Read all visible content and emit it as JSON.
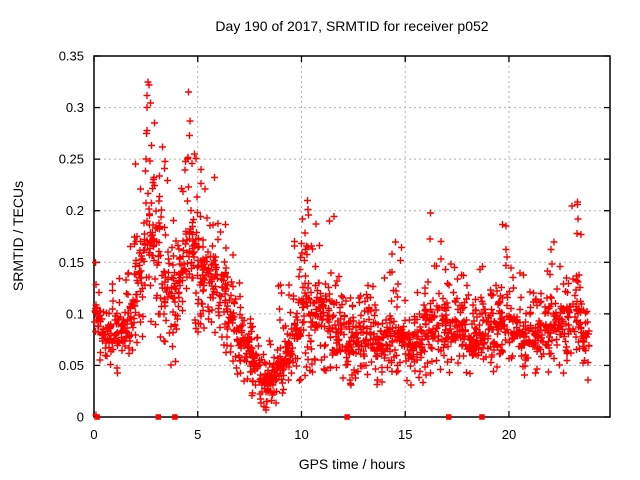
{
  "chart_data": {
    "type": "scatter",
    "title": "Day 190 of 2017, SRMTID for receiver p052",
    "xlabel": "GPS time / hours",
    "ylabel": "SRMTID / TECUs",
    "xlim": [
      0,
      24.87
    ],
    "ylim": [
      0,
      0.35
    ],
    "xticks": [
      0,
      5,
      10,
      15,
      20
    ],
    "xtick_labels": [
      "0",
      "5",
      "10",
      "15",
      "20"
    ],
    "yticks": [
      0,
      0.05,
      0.1,
      0.15,
      0.2,
      0.25,
      0.3,
      0.35
    ],
    "ytick_labels": [
      "0",
      "0.05",
      "0.1",
      "0.15",
      "0.2",
      "0.25",
      "0.3",
      "0.35"
    ],
    "grid": true,
    "legend": "none",
    "marker": "plus",
    "marker_color": "#ff0000",
    "grid_color": "#b0b0b0",
    "border_color": "#000000",
    "series_description": "Dense GPS ionospheric SRMTID scatter over 24 h: morning peak 2-6 h reaching 0.325, midday minimum near 8.3 h (~0.01), secondary spikes near 10.3, 11.3, 16.2, 19.8 and 23.3 h, baseline band 0.04-0.12",
    "density_bins": [
      [
        0.0,
        0.4,
        0.05,
        0.07,
        0.12,
        0.155,
        26
      ],
      [
        0.4,
        0.8,
        0.045,
        0.06,
        0.1,
        0.13,
        30
      ],
      [
        0.8,
        1.2,
        0.04,
        0.06,
        0.1,
        0.14,
        32
      ],
      [
        1.2,
        1.6,
        0.04,
        0.065,
        0.11,
        0.16,
        34
      ],
      [
        1.6,
        2.0,
        0.05,
        0.08,
        0.13,
        0.19,
        34
      ],
      [
        2.0,
        2.4,
        0.07,
        0.1,
        0.17,
        0.25,
        36
      ],
      [
        2.4,
        2.8,
        0.09,
        0.13,
        0.22,
        0.325,
        38
      ],
      [
        2.8,
        3.2,
        0.08,
        0.12,
        0.22,
        0.3,
        38
      ],
      [
        3.2,
        3.6,
        0.06,
        0.1,
        0.18,
        0.26,
        34
      ],
      [
        3.6,
        4.0,
        0.05,
        0.09,
        0.15,
        0.2,
        32
      ],
      [
        4.0,
        4.4,
        0.07,
        0.1,
        0.17,
        0.24,
        34
      ],
      [
        4.4,
        4.8,
        0.08,
        0.12,
        0.2,
        0.315,
        36
      ],
      [
        4.8,
        5.2,
        0.08,
        0.11,
        0.19,
        0.29,
        36
      ],
      [
        5.2,
        5.6,
        0.08,
        0.11,
        0.18,
        0.25,
        36
      ],
      [
        5.6,
        6.0,
        0.07,
        0.1,
        0.17,
        0.235,
        36
      ],
      [
        6.0,
        6.4,
        0.06,
        0.09,
        0.15,
        0.2,
        34
      ],
      [
        6.4,
        6.8,
        0.05,
        0.07,
        0.12,
        0.16,
        34
      ],
      [
        6.8,
        7.2,
        0.04,
        0.06,
        0.1,
        0.13,
        34
      ],
      [
        7.2,
        7.6,
        0.03,
        0.05,
        0.09,
        0.11,
        34
      ],
      [
        7.6,
        8.0,
        0.02,
        0.035,
        0.07,
        0.09,
        36
      ],
      [
        8.0,
        8.4,
        0.005,
        0.02,
        0.05,
        0.07,
        36
      ],
      [
        8.4,
        8.8,
        0.01,
        0.025,
        0.055,
        0.08,
        36
      ],
      [
        8.8,
        9.2,
        0.02,
        0.035,
        0.065,
        0.13,
        36
      ],
      [
        9.2,
        9.6,
        0.03,
        0.045,
        0.08,
        0.14,
        36
      ],
      [
        9.6,
        10.0,
        0.035,
        0.05,
        0.11,
        0.17,
        38
      ],
      [
        10.0,
        10.4,
        0.04,
        0.07,
        0.15,
        0.21,
        38
      ],
      [
        10.4,
        10.8,
        0.04,
        0.06,
        0.12,
        0.19,
        36
      ],
      [
        10.8,
        11.2,
        0.045,
        0.07,
        0.13,
        0.185,
        36
      ],
      [
        11.2,
        11.6,
        0.04,
        0.065,
        0.13,
        0.195,
        36
      ],
      [
        11.6,
        12.0,
        0.035,
        0.05,
        0.1,
        0.145,
        36
      ],
      [
        12.0,
        12.5,
        0.03,
        0.05,
        0.09,
        0.12,
        40
      ],
      [
        12.5,
        13.0,
        0.03,
        0.05,
        0.09,
        0.125,
        40
      ],
      [
        13.0,
        13.5,
        0.035,
        0.05,
        0.1,
        0.13,
        40
      ],
      [
        13.5,
        14.0,
        0.03,
        0.05,
        0.09,
        0.115,
        40
      ],
      [
        14.0,
        14.5,
        0.04,
        0.055,
        0.1,
        0.165,
        40
      ],
      [
        14.5,
        15.0,
        0.04,
        0.06,
        0.105,
        0.17,
        40
      ],
      [
        15.0,
        15.5,
        0.03,
        0.05,
        0.09,
        0.12,
        40
      ],
      [
        15.5,
        16.0,
        0.03,
        0.05,
        0.095,
        0.135,
        40
      ],
      [
        16.0,
        16.5,
        0.04,
        0.06,
        0.11,
        0.2,
        40
      ],
      [
        16.5,
        17.0,
        0.04,
        0.06,
        0.115,
        0.18,
        40
      ],
      [
        17.0,
        17.5,
        0.04,
        0.06,
        0.11,
        0.16,
        40
      ],
      [
        17.5,
        18.0,
        0.04,
        0.06,
        0.105,
        0.14,
        40
      ],
      [
        18.0,
        18.5,
        0.03,
        0.05,
        0.1,
        0.13,
        40
      ],
      [
        18.5,
        19.0,
        0.03,
        0.05,
        0.1,
        0.15,
        40
      ],
      [
        19.0,
        19.5,
        0.04,
        0.06,
        0.11,
        0.18,
        40
      ],
      [
        19.5,
        20.0,
        0.04,
        0.065,
        0.115,
        0.19,
        40
      ],
      [
        20.0,
        20.5,
        0.04,
        0.06,
        0.105,
        0.15,
        40
      ],
      [
        20.5,
        21.0,
        0.04,
        0.06,
        0.1,
        0.14,
        40
      ],
      [
        21.0,
        21.5,
        0.04,
        0.06,
        0.1,
        0.13,
        40
      ],
      [
        21.5,
        22.0,
        0.04,
        0.06,
        0.105,
        0.15,
        40
      ],
      [
        22.0,
        22.5,
        0.045,
        0.065,
        0.115,
        0.17,
        40
      ],
      [
        22.5,
        23.0,
        0.04,
        0.065,
        0.12,
        0.155,
        40
      ],
      [
        23.0,
        23.5,
        0.03,
        0.07,
        0.13,
        0.21,
        38
      ],
      [
        23.5,
        23.9,
        0.035,
        0.055,
        0.1,
        0.13,
        26
      ]
    ],
    "notable_points": [
      [
        0.1,
        0.002
      ],
      [
        2.6,
        0.325
      ],
      [
        2.66,
        0.322
      ],
      [
        2.55,
        0.3
      ],
      [
        2.92,
        0.285
      ],
      [
        2.5,
        0.25
      ],
      [
        3.3,
        0.262
      ],
      [
        4.55,
        0.315
      ],
      [
        4.62,
        0.287
      ],
      [
        4.5,
        0.25
      ],
      [
        4.85,
        0.255
      ],
      [
        5.15,
        0.24
      ],
      [
        5.8,
        0.232
      ],
      [
        10.28,
        0.21
      ],
      [
        10.33,
        0.196
      ],
      [
        11.35,
        0.19
      ],
      [
        16.22,
        0.198
      ],
      [
        19.85,
        0.185
      ],
      [
        23.3,
        0.206
      ],
      [
        23.33,
        0.192
      ],
      [
        23.28,
        0.178
      ],
      [
        8.3,
        0.007
      ],
      [
        8.35,
        0.015
      ],
      [
        8.28,
        0.024
      ],
      [
        9.0,
        0.128
      ]
    ],
    "zero_marker_series": {
      "marker": "square",
      "color": "#ff0000",
      "y": 0,
      "x": [
        0.15,
        3.1,
        3.9,
        12.2,
        17.1,
        18.7
      ]
    },
    "seed": 20170710
  }
}
